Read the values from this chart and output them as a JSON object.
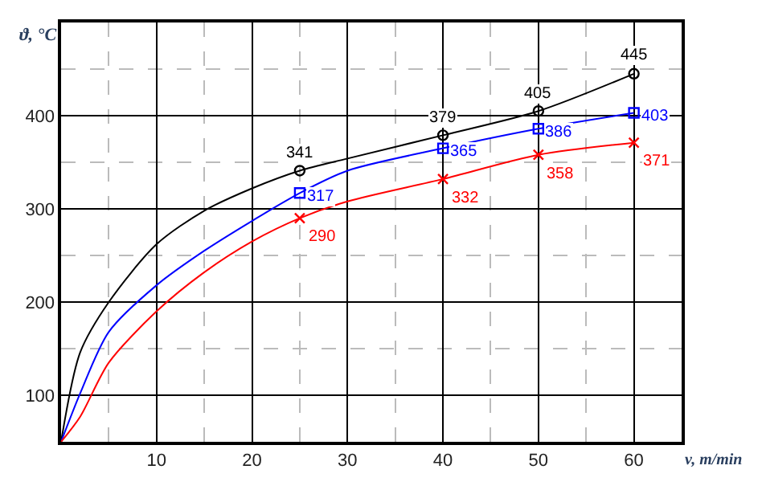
{
  "chart_data": {
    "type": "line",
    "xlabel": "v, m/min",
    "ylabel": "ϑ, °C",
    "x": [
      25,
      40,
      50,
      60
    ],
    "series": [
      {
        "color": "#000000",
        "marker": "none",
        "x": [
          0,
          2,
          5,
          10,
          15,
          20,
          25,
          30,
          40,
          50,
          60
        ],
        "values": [
          50,
          146,
          200,
          262,
          298,
          322,
          341,
          354,
          379,
          405,
          445
        ]
      },
      {
        "color": "#0000ff",
        "marker": "none",
        "x": [
          0,
          2,
          5,
          10,
          15,
          20,
          25,
          30,
          40,
          50,
          60
        ],
        "values": [
          50,
          102,
          168,
          218,
          255,
          287,
          317,
          341,
          365,
          386,
          403
        ]
      },
      {
        "color": "#ff0000",
        "marker": "none",
        "x": [
          0,
          2,
          5,
          10,
          15,
          20,
          25,
          30,
          40,
          50,
          60
        ],
        "values": [
          50,
          77,
          135,
          190,
          232,
          265,
          290,
          308,
          332,
          358,
          371
        ]
      },
      {
        "type": "scatter",
        "color": "#000000",
        "marker": "circle",
        "values": [
          341,
          379,
          405,
          445
        ],
        "value_labels": [
          "341",
          "379",
          "405",
          "445"
        ]
      },
      {
        "type": "scatter",
        "color": "#0000ff",
        "marker": "square",
        "values": [
          317,
          365,
          386,
          403
        ],
        "value_labels": [
          "317",
          "365",
          "386",
          "403"
        ]
      },
      {
        "type": "scatter",
        "color": "#ff0000",
        "marker": "cross",
        "values": [
          290,
          332,
          358,
          371
        ],
        "value_labels": [
          "290",
          "332",
          "358",
          "371"
        ]
      }
    ],
    "xlim": [
      0,
      65
    ],
    "ylim": [
      50,
      500
    ],
    "xticks": [
      10,
      20,
      30,
      40,
      50,
      60
    ],
    "yticks": [
      100,
      200,
      300,
      400
    ],
    "grid": true
  }
}
